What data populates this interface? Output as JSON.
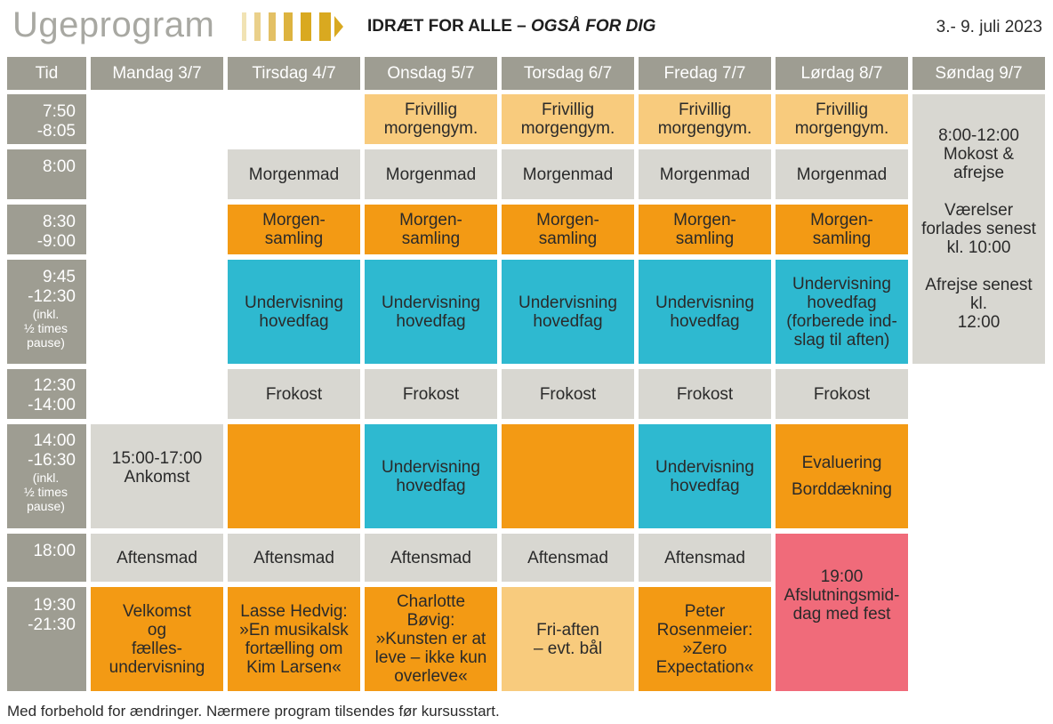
{
  "header": {
    "title": "Ugeprogram",
    "subtitle_main": "IDRÆT FOR ALLE – ",
    "subtitle_italic": "OGSÅ FOR DIG",
    "dates": "3.- 9. juli 2023",
    "stripe_color": "#d9a920"
  },
  "columns": {
    "time": "Tid",
    "mon": "Mandag 3/7",
    "tue": "Tirsdag 4/7",
    "wed": "Onsdag 5/7",
    "thu": "Torsdag 6/7",
    "fri": "Fredag 7/7",
    "sat": "Lørdag 8/7",
    "sun": "Søndag 9/7"
  },
  "times": {
    "t1a": "7:50",
    "t1b": "-8:05",
    "t2": "8:00",
    "t3a": "8:30",
    "t3b": "-9:00",
    "t4a": "9:45",
    "t4b": "-12:30",
    "t4n1": "(inkl.",
    "t4n2": "½ times",
    "t4n3": "pause)",
    "t5a": "12:30",
    "t5b": "-14:00",
    "t6a": "14:00",
    "t6b": "-16:30",
    "t6n1": "(inkl.",
    "t6n2": "½ times",
    "t6n3": "pause)",
    "t7": "18:00",
    "t8a": "19:30",
    "t8b": "-21:30"
  },
  "activities": {
    "gym1": "Frivillig",
    "gym2": "morgengym.",
    "breakfast": "Morgenmad",
    "assembly1": "Morgen-",
    "assembly2": "samling",
    "teach1": "Undervisning",
    "teach2": "hovedfag",
    "sat_teach1": "Undervisning",
    "sat_teach2": "hovedfag",
    "sat_teach3": "(forberede ind-",
    "sat_teach4": "slag til aften)",
    "lunch": "Frokost",
    "arrival1": "15:00-17:00",
    "arrival2": "Ankomst",
    "evaluation": "Evaluering",
    "table_setting": "Borddækning",
    "dinner": "Aftensmad",
    "sun1": "8:00-12:00",
    "sun2": "Mokost &",
    "sun3": "afrejse",
    "sun4": "Værelser",
    "sun5": "forlades senest",
    "sun6": "kl. 10:00",
    "sun7": "Afrejse senest kl.",
    "sun8": "12:00",
    "mon_eve1": "Velkomst",
    "mon_eve2": "og",
    "mon_eve3": "fælles-",
    "mon_eve4": "undervisning",
    "tue_eve1": "Lasse Hedvig:",
    "tue_eve2": "»En musikalsk",
    "tue_eve3": "fortælling om",
    "tue_eve4": "Kim Larsen«",
    "wed_eve1": "Charlotte",
    "wed_eve2": "Bøvig:",
    "wed_eve3": "»Kunsten er at",
    "wed_eve4": "leve – ikke kun",
    "wed_eve5": "overleve«",
    "thu_eve1": "Fri-aften",
    "thu_eve2": "– evt. bål",
    "fri_eve1": "Peter",
    "fri_eve2": "Rosenmeier:",
    "fri_eve3": "»Zero",
    "fri_eve4": "Expectation«",
    "sat_eve1": "19:00",
    "sat_eve2": "Afslutningsmid-",
    "sat_eve3": "dag med fest"
  },
  "footer": "Med forbehold for ændringer. Nærmere program tilsendes før kursusstart.",
  "colors": {
    "header_grey": "#9e9d92",
    "light_grey": "#d8d7d1",
    "orange": "#f39a14",
    "light_orange": "#f8cb7d",
    "teal": "#2eb9d0",
    "pink": "#f06b7a"
  }
}
